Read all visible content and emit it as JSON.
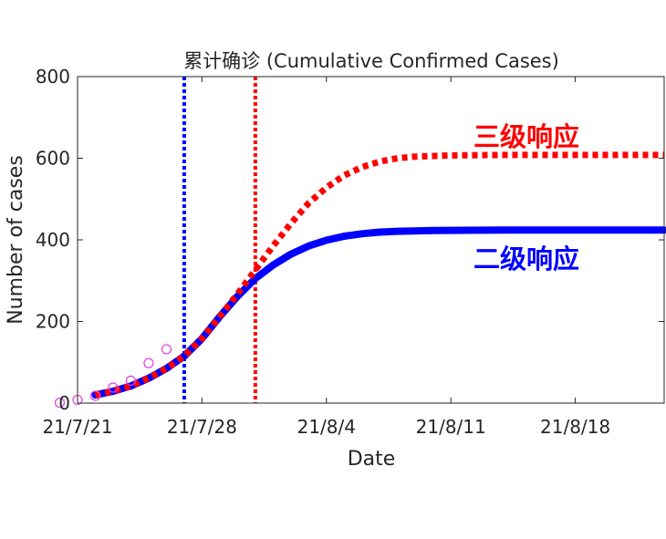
{
  "chart_data": {
    "type": "line",
    "title": "累计确诊 (Cumulative Confirmed Cases)",
    "xlabel": "Date",
    "ylabel": "Number of cases",
    "xlim": [
      "2021-07-21",
      "2021-08-23"
    ],
    "ylim": [
      0,
      800
    ],
    "yticks": [
      0,
      200,
      400,
      600,
      800
    ],
    "xticks": [
      {
        "date": "2021-07-21",
        "label": "21/7/21"
      },
      {
        "date": "2021-07-28",
        "label": "21/7/28"
      },
      {
        "date": "2021-08-04",
        "label": "21/8/4"
      },
      {
        "date": "2021-08-11",
        "label": "21/8/11"
      },
      {
        "date": "2021-08-18",
        "label": "21/8/18"
      }
    ],
    "grid": false,
    "observed": {
      "color": "#e040e0",
      "marker": "circle",
      "points": [
        {
          "x": "2021-07-20",
          "y": 1
        },
        {
          "x": "2021-07-21",
          "y": 8
        },
        {
          "x": "2021-07-22",
          "y": 18
        },
        {
          "x": "2021-07-23",
          "y": 38
        },
        {
          "x": "2021-07-24",
          "y": 55
        },
        {
          "x": "2021-07-25",
          "y": 98
        },
        {
          "x": "2021-07-26",
          "y": 132
        }
      ]
    },
    "series": [
      {
        "name": "三级响应",
        "color": "#ff0000",
        "style": "dotted",
        "points": [
          {
            "x": "2021-07-22",
            "y": 20
          },
          {
            "x": "2021-07-23",
            "y": 29
          },
          {
            "x": "2021-07-24",
            "y": 42
          },
          {
            "x": "2021-07-25",
            "y": 61
          },
          {
            "x": "2021-07-26",
            "y": 85
          },
          {
            "x": "2021-07-27",
            "y": 115
          },
          {
            "x": "2021-07-28",
            "y": 158
          },
          {
            "x": "2021-07-29",
            "y": 212
          },
          {
            "x": "2021-07-30",
            "y": 268
          },
          {
            "x": "2021-07-31",
            "y": 326
          },
          {
            "x": "2021-08-01",
            "y": 385
          },
          {
            "x": "2021-08-02",
            "y": 440
          },
          {
            "x": "2021-08-03",
            "y": 490
          },
          {
            "x": "2021-08-04",
            "y": 528
          },
          {
            "x": "2021-08-05",
            "y": 558
          },
          {
            "x": "2021-08-06",
            "y": 578
          },
          {
            "x": "2021-08-07",
            "y": 592
          },
          {
            "x": "2021-08-08",
            "y": 600
          },
          {
            "x": "2021-08-09",
            "y": 604
          },
          {
            "x": "2021-08-11",
            "y": 607
          },
          {
            "x": "2021-08-14",
            "y": 608
          },
          {
            "x": "2021-08-18",
            "y": 608
          },
          {
            "x": "2021-08-23",
            "y": 608
          }
        ]
      },
      {
        "name": "二级响应",
        "color": "#0000ff",
        "style": "solid",
        "points": [
          {
            "x": "2021-07-22",
            "y": 20
          },
          {
            "x": "2021-07-23",
            "y": 29
          },
          {
            "x": "2021-07-24",
            "y": 42
          },
          {
            "x": "2021-07-25",
            "y": 61
          },
          {
            "x": "2021-07-26",
            "y": 85
          },
          {
            "x": "2021-07-27",
            "y": 115
          },
          {
            "x": "2021-07-28",
            "y": 158
          },
          {
            "x": "2021-07-29",
            "y": 212
          },
          {
            "x": "2021-07-30",
            "y": 262
          },
          {
            "x": "2021-07-31",
            "y": 305
          },
          {
            "x": "2021-08-01",
            "y": 338
          },
          {
            "x": "2021-08-02",
            "y": 365
          },
          {
            "x": "2021-08-03",
            "y": 385
          },
          {
            "x": "2021-08-04",
            "y": 399
          },
          {
            "x": "2021-08-05",
            "y": 409
          },
          {
            "x": "2021-08-06",
            "y": 415
          },
          {
            "x": "2021-08-07",
            "y": 419
          },
          {
            "x": "2021-08-08",
            "y": 421
          },
          {
            "x": "2021-08-10",
            "y": 423
          },
          {
            "x": "2021-08-14",
            "y": 424
          },
          {
            "x": "2021-08-18",
            "y": 424
          },
          {
            "x": "2021-08-23",
            "y": 424
          }
        ]
      }
    ],
    "vlines": [
      {
        "x": "2021-07-27",
        "color": "#0000ff",
        "style": "dotted"
      },
      {
        "x": "2021-07-31",
        "color": "#ff0000",
        "style": "dotted"
      }
    ],
    "annotations": [
      {
        "text": "三级响应",
        "color": "#ff0000"
      },
      {
        "text": "二级响应",
        "color": "#0000ff"
      }
    ]
  }
}
